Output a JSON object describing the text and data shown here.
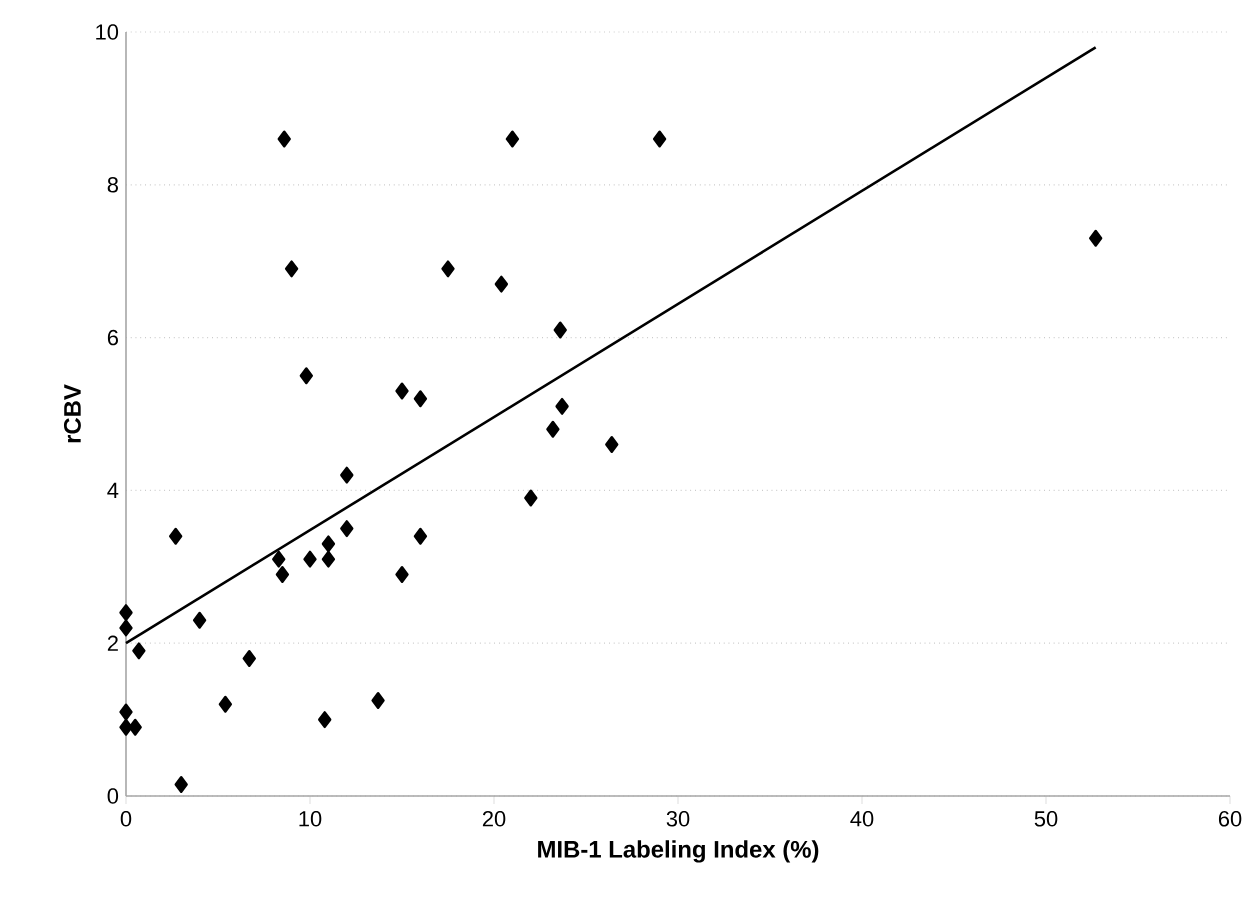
{
  "chart_data": {
    "type": "scatter",
    "xlabel": "MIB-1 Labeling Index (%)",
    "ylabel": "rCBV",
    "xlim": [
      0,
      60
    ],
    "ylim": [
      0,
      10
    ],
    "xticks": [
      0,
      10,
      20,
      30,
      40,
      50,
      60
    ],
    "yticks": [
      0,
      2,
      4,
      6,
      8,
      10
    ],
    "grid": "y",
    "marker": "diamond",
    "series": [
      {
        "color": "#000000",
        "x": [
          0,
          0,
          0,
          0,
          0.5,
          0.7,
          2.7,
          3,
          4,
          5.4,
          6.7,
          8.3,
          8.5,
          8.6,
          9,
          9.8,
          10,
          10.8,
          11,
          11,
          12,
          12,
          13.7,
          15,
          15,
          16,
          16,
          17.5,
          20.4,
          21,
          22,
          23.2,
          23.6,
          23.7,
          26.4,
          29,
          52.7
        ],
        "values": [
          2.4,
          2.2,
          1.1,
          0.9,
          0.9,
          1.9,
          3.4,
          0.15,
          2.3,
          1.2,
          1.8,
          3.1,
          2.9,
          8.6,
          6.9,
          5.5,
          3.1,
          1.0,
          3.3,
          3.1,
          4.2,
          3.5,
          1.25,
          5.3,
          2.9,
          5.2,
          3.4,
          6.9,
          6.7,
          8.6,
          3.9,
          4.8,
          6.1,
          5.1,
          4.6,
          8.6,
          7.3
        ]
      },
      {
        "type": "line",
        "color": "#000000",
        "marker": "none",
        "line_style": "solid",
        "x": [
          0,
          52.7
        ],
        "values": [
          2.0,
          9.8
        ]
      }
    ]
  }
}
